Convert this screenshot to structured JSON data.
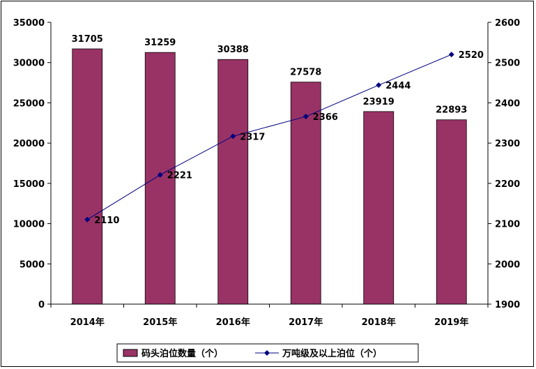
{
  "chart_data": {
    "type": "bar",
    "categories": [
      "2014年",
      "2015年",
      "2016年",
      "2017年",
      "2018年",
      "2019年"
    ],
    "series": [
      {
        "name": "码头泊位数量（个）",
        "type": "bar",
        "axis": "left",
        "color": "#993366",
        "values": [
          31705,
          31259,
          30388,
          27578,
          23919,
          22893
        ]
      },
      {
        "name": "万吨级及以上泊位（个）",
        "type": "line",
        "axis": "right",
        "color": "#000080",
        "values": [
          2110,
          2221,
          2317,
          2366,
          2444,
          2520
        ]
      }
    ],
    "ylim_left": [
      0,
      35000
    ],
    "yticks_left": [
      0,
      5000,
      10000,
      15000,
      20000,
      25000,
      30000,
      35000
    ],
    "ylim_right": [
      1900,
      2600
    ],
    "yticks_right": [
      1900,
      2000,
      2100,
      2200,
      2300,
      2400,
      2500,
      2600
    ],
    "legend_position": "bottom",
    "grid": false
  }
}
